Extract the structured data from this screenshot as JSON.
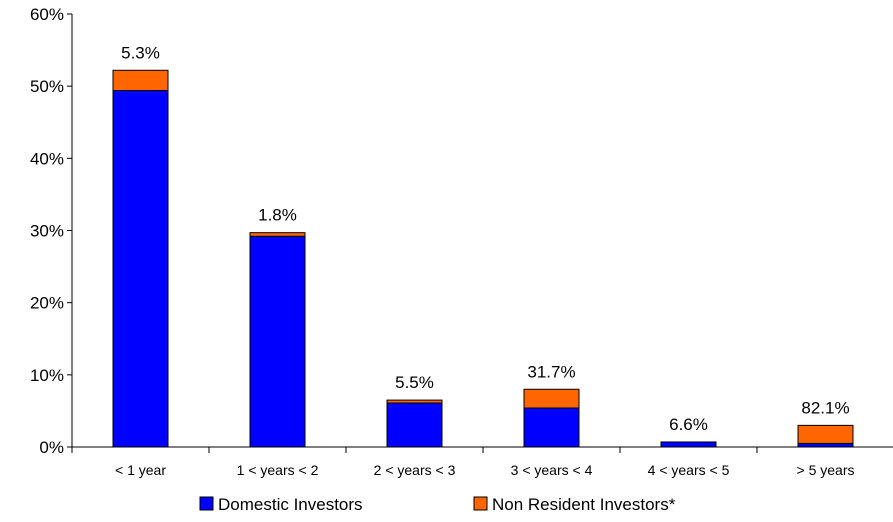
{
  "chart_data": {
    "type": "bar",
    "stacked": true,
    "categories": [
      "< 1 year",
      "1 < years < 2",
      "2 < years < 3",
      "3 < years < 4",
      "4 < years < 5",
      "> 5 years"
    ],
    "series": [
      {
        "name": "Domestic Investors",
        "color": "#0000FF",
        "values": [
          49.4,
          29.2,
          6.1,
          5.4,
          0.7,
          0.5
        ]
      },
      {
        "name": "Non Resident Investors*",
        "color": "#FF6600",
        "values": [
          2.8,
          0.5,
          0.4,
          2.6,
          0.0,
          2.5
        ]
      }
    ],
    "data_labels": [
      "5.3%",
      "1.8%",
      "5.5%",
      "31.7%",
      "6.6%",
      "82.1%"
    ],
    "yticks": [
      "0%",
      "10%",
      "20%",
      "30%",
      "40%",
      "50%",
      "60%"
    ],
    "ylim": [
      0,
      60
    ],
    "title": "",
    "xlabel": "",
    "ylabel": "",
    "legend_position": "bottom",
    "grid": false
  }
}
